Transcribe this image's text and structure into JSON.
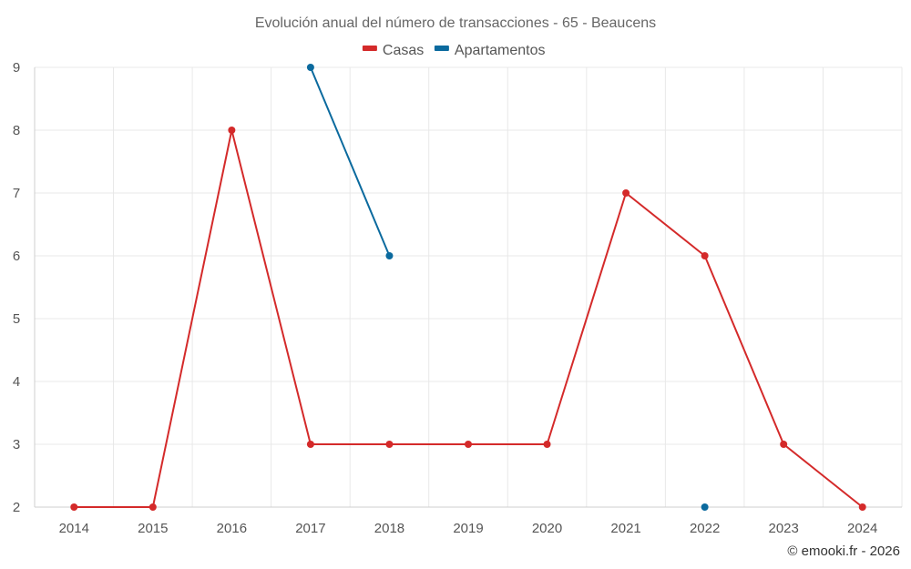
{
  "chart_data": {
    "type": "line",
    "title": "Evolución anual del número de transacciones - 65 - Beaucens",
    "x": [
      "2014",
      "2015",
      "2016",
      "2017",
      "2018",
      "2019",
      "2020",
      "2021",
      "2022",
      "2023",
      "2024"
    ],
    "y_ticks": [
      "2",
      "3",
      "4",
      "5",
      "6",
      "7",
      "8",
      "9"
    ],
    "ylim": [
      2,
      9
    ],
    "grid": true,
    "legend_position": "top-center",
    "series": [
      {
        "name": "Casas",
        "color": "#d42a2a",
        "values": [
          2,
          2,
          8,
          3,
          3,
          3,
          3,
          7,
          6,
          3,
          2
        ]
      },
      {
        "name": "Apartamentos",
        "color": "#0b6a9e",
        "values": [
          null,
          null,
          null,
          9,
          6,
          null,
          null,
          null,
          2,
          null,
          null
        ]
      }
    ]
  },
  "credit": "© emooki.fr - 2026"
}
